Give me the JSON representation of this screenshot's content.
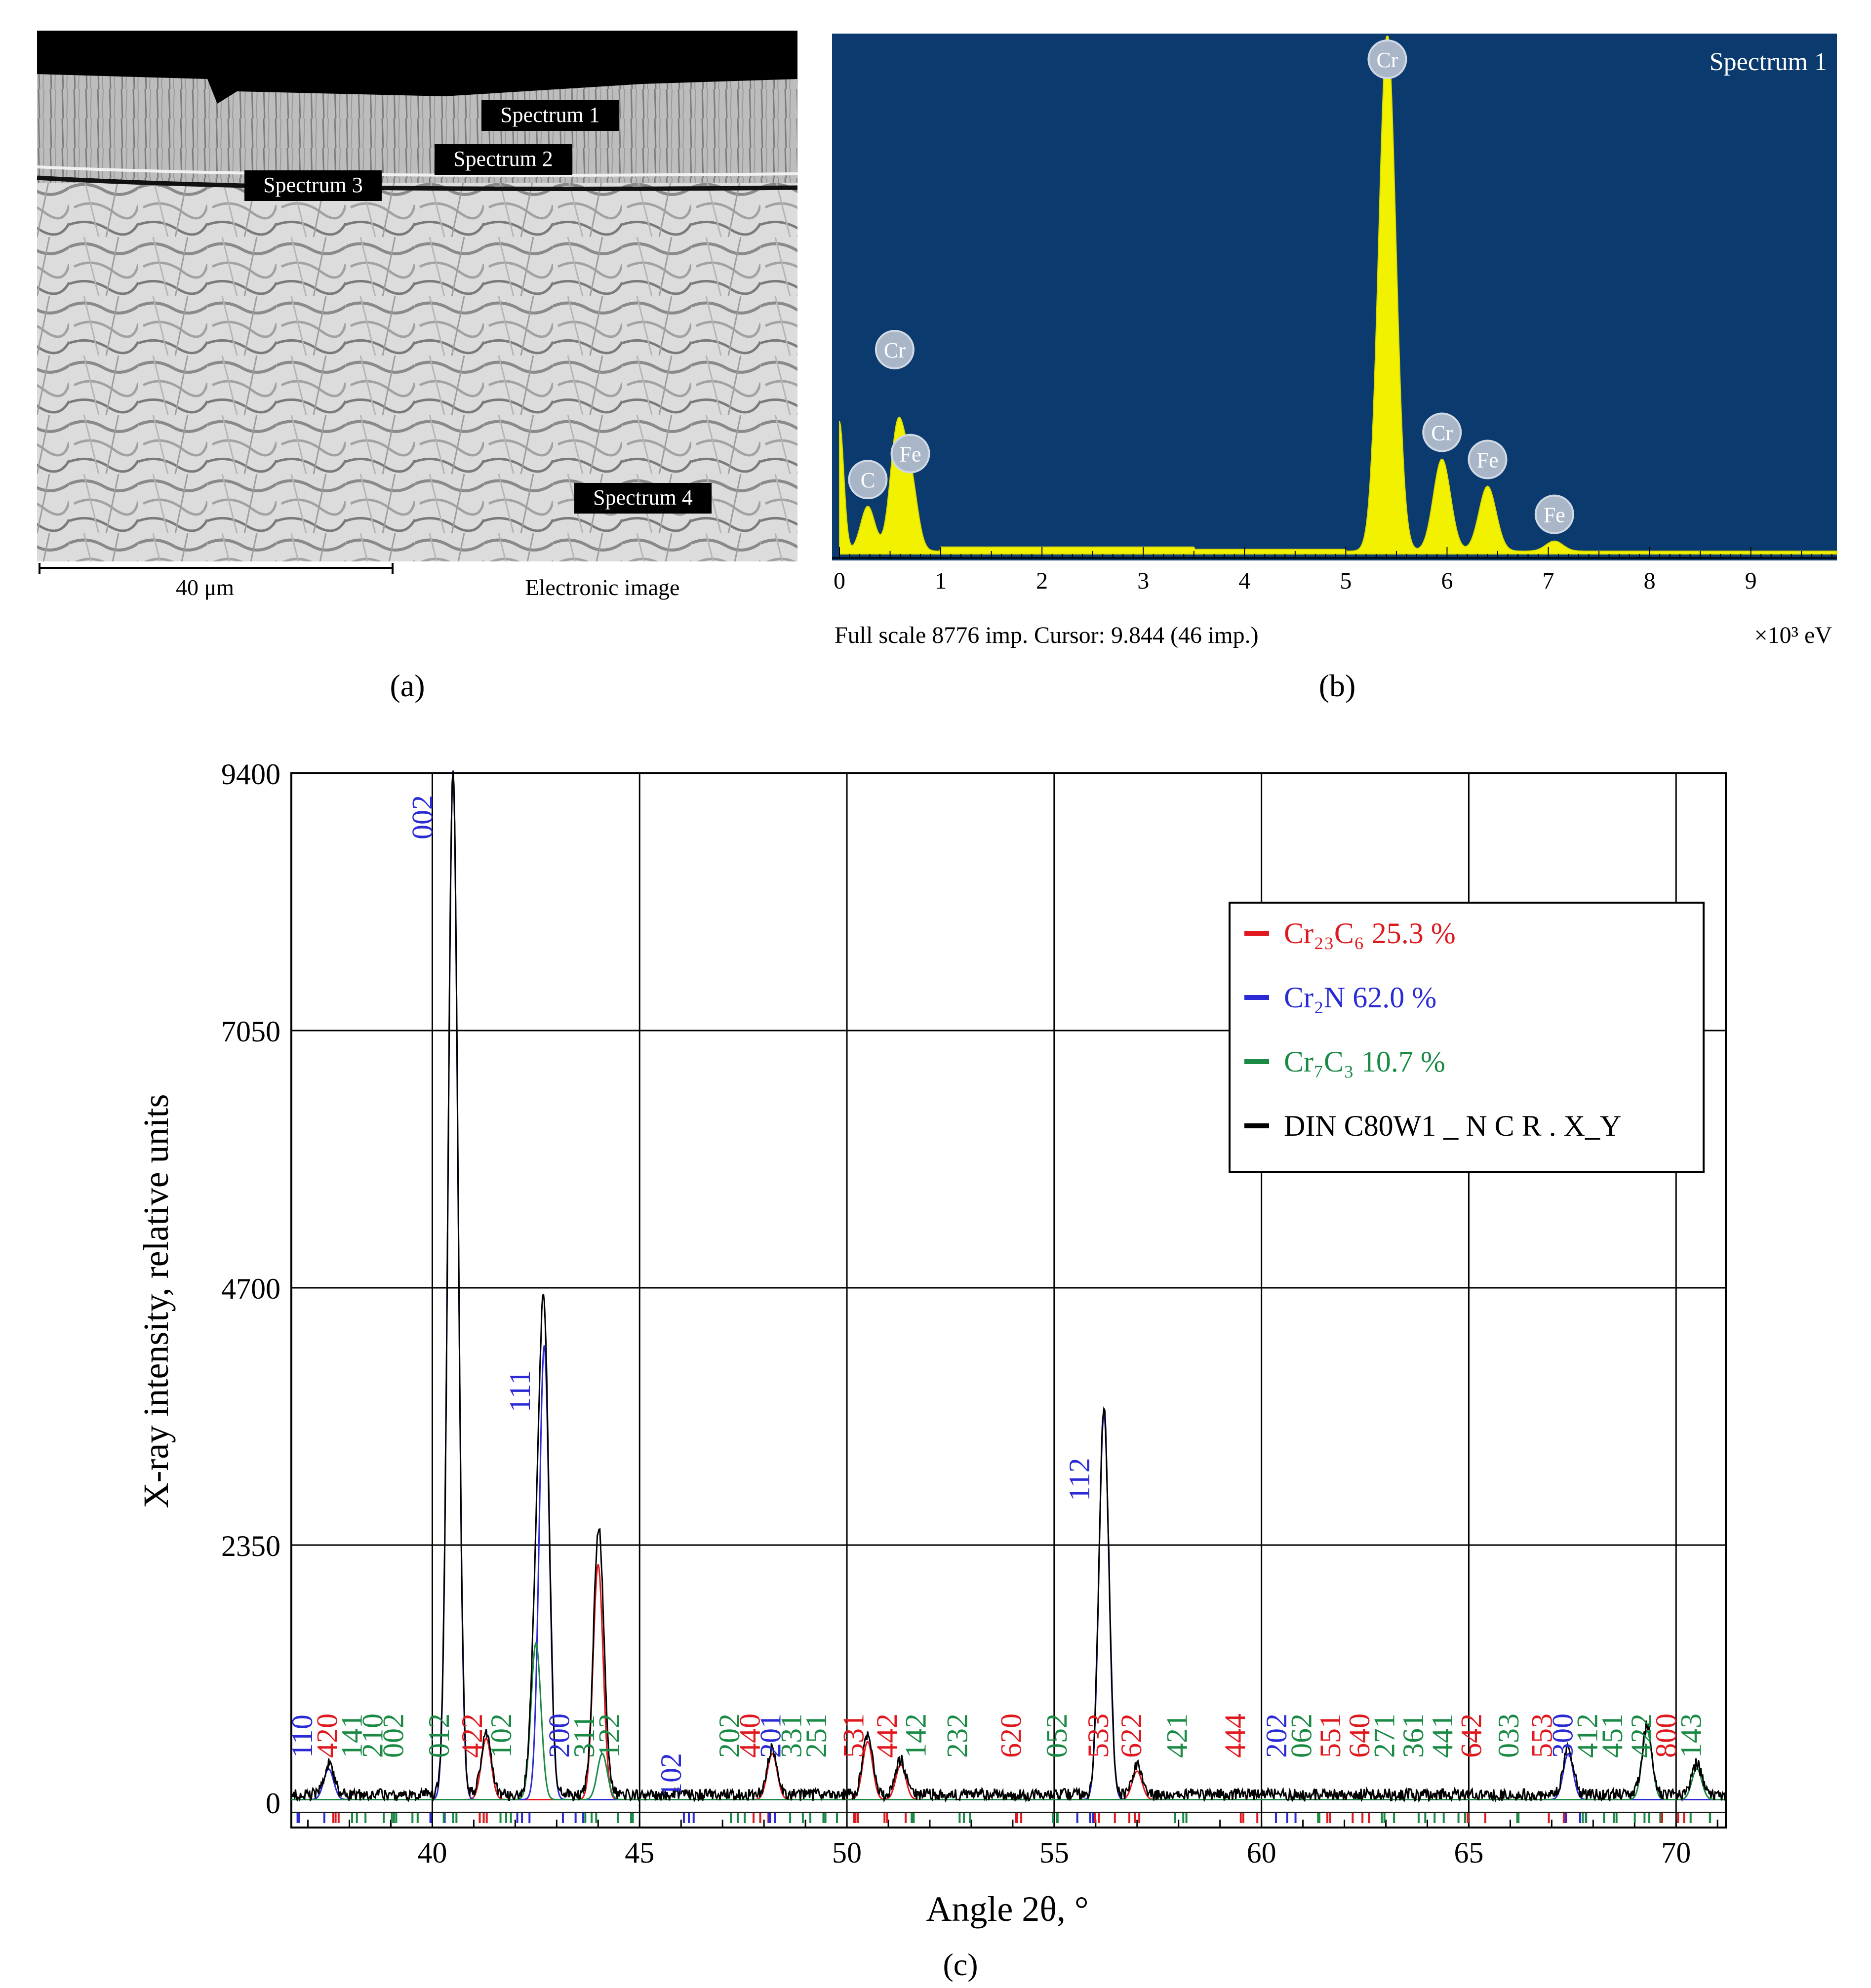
{
  "panel_a": {
    "label": "(a)",
    "labels": [
      "Spectrum 1",
      "Spectrum 2",
      "Spectrum 3",
      "Spectrum 4"
    ],
    "scale_bar": "40 μm",
    "caption": "Electronic image"
  },
  "panel_b": {
    "label": "(b)",
    "title": "Spectrum 1",
    "footer_left": "Full scale 8776 imp. Cursor: 9.844 (46 imp.)",
    "footer_right": "×10³ eV",
    "colors": {
      "background": "#0b3a6e",
      "spectrum": "#f2f200"
    },
    "chart_data": {
      "type": "area",
      "xlabel": "×10³ eV",
      "xlim": [
        0,
        9.85
      ],
      "ylim": [
        0,
        8776
      ],
      "x_ticks": [
        0,
        1,
        2,
        3,
        4,
        5,
        6,
        7,
        8,
        9
      ],
      "peaks": [
        {
          "element": "C",
          "x": 0.28,
          "y": 760
        },
        {
          "element": "Cr",
          "x": 0.57,
          "y": 2000
        },
        {
          "element": "Fe",
          "x": 0.7,
          "y": 1200
        },
        {
          "element": "Cr",
          "x": 5.41,
          "y": 8776
        },
        {
          "element": "Cr",
          "x": 5.95,
          "y": 1560
        },
        {
          "element": "Fe",
          "x": 6.4,
          "y": 1100
        },
        {
          "element": "Fe",
          "x": 7.06,
          "y": 170
        }
      ]
    }
  },
  "panel_c": {
    "label": "(c)",
    "colors": {
      "Cr23C6": "#e0191e",
      "Cr2N": "#2b2bd6",
      "Cr7C3": "#1a8a45",
      "measured": "#000000"
    },
    "chart_data": {
      "type": "line",
      "xlabel": "Angle 2θ, °",
      "ylabel": "X-ray intensity, relative units",
      "xlim": [
        36.6,
        71.2
      ],
      "ylim": [
        0,
        9400
      ],
      "x_ticks": [
        40,
        45,
        50,
        55,
        60,
        65,
        70
      ],
      "y_ticks": [
        0,
        2350,
        4700,
        7050,
        9400
      ],
      "grid": true,
      "legend_position": "upper-right",
      "legend": [
        {
          "series": "Cr23C6",
          "text": "Cr₂₃C₆ 25.3 %"
        },
        {
          "series": "Cr2N",
          "text": "Cr₂N 62.0 %"
        },
        {
          "series": "Cr7C3",
          "text": "Cr₇C₃ 10.7 %"
        },
        {
          "series": "measured",
          "text": "DIN C80W1 _ N C R . X_Y"
        }
      ],
      "peaks": [
        {
          "series": "Cr2N",
          "x": 37.5,
          "y": 280
        },
        {
          "series": "Cr2N",
          "x": 40.5,
          "y": 9400
        },
        {
          "series": "Cr23C6",
          "x": 41.3,
          "y": 560
        },
        {
          "series": "Cr7C3",
          "x": 42.5,
          "y": 1430
        },
        {
          "series": "Cr2N",
          "x": 42.7,
          "y": 4150
        },
        {
          "series": "Cr23C6",
          "x": 44.0,
          "y": 2150
        },
        {
          "series": "Cr7C3",
          "x": 44.1,
          "y": 420
        },
        {
          "series": "Cr23C6",
          "x": 48.2,
          "y": 420
        },
        {
          "series": "Cr23C6",
          "x": 50.5,
          "y": 530
        },
        {
          "series": "Cr23C6",
          "x": 51.3,
          "y": 320
        },
        {
          "series": "Cr2N",
          "x": 56.2,
          "y": 3530
        },
        {
          "series": "Cr23C6",
          "x": 57.0,
          "y": 260
        },
        {
          "series": "Cr2N",
          "x": 67.4,
          "y": 420
        },
        {
          "series": "Cr7C3",
          "x": 69.3,
          "y": 630
        },
        {
          "series": "Cr7C3",
          "x": 70.5,
          "y": 280
        }
      ],
      "hkl_labels": [
        {
          "text": "110",
          "x": 37.1,
          "series": "Cr2N"
        },
        {
          "text": "420",
          "x": 37.7,
          "series": "Cr23C6"
        },
        {
          "text": "141",
          "x": 38.3,
          "series": "Cr7C3"
        },
        {
          "text": "210",
          "x": 38.8,
          "series": "Cr7C3"
        },
        {
          "text": "002",
          "x": 39.3,
          "series": "Cr7C3"
        },
        {
          "text": "002",
          "x": 40.0,
          "series": "Cr2N"
        },
        {
          "text": "012",
          "x": 40.4,
          "series": "Cr7C3"
        },
        {
          "text": "422",
          "x": 41.2,
          "series": "Cr23C6"
        },
        {
          "text": "102",
          "x": 41.9,
          "series": "Cr7C3"
        },
        {
          "text": "111",
          "x": 42.4,
          "series": "Cr2N"
        },
        {
          "text": "200",
          "x": 43.3,
          "series": "Cr2N"
        },
        {
          "text": "311",
          "x": 43.9,
          "series": "Cr7C3"
        },
        {
          "text": "122",
          "x": 44.5,
          "series": "Cr7C3"
        },
        {
          "text": "102",
          "x": 46.0,
          "series": "Cr2N"
        },
        {
          "text": "202",
          "x": 47.4,
          "series": "Cr7C3"
        },
        {
          "text": "440",
          "x": 47.9,
          "series": "Cr23C6"
        },
        {
          "text": "201",
          "x": 48.4,
          "series": "Cr2N"
        },
        {
          "text": "331",
          "x": 48.9,
          "series": "Cr7C3"
        },
        {
          "text": "251",
          "x": 49.5,
          "series": "Cr7C3"
        },
        {
          "text": "531",
          "x": 50.4,
          "series": "Cr23C6"
        },
        {
          "text": "442",
          "x": 51.2,
          "series": "Cr23C6"
        },
        {
          "text": "142",
          "x": 51.9,
          "series": "Cr7C3"
        },
        {
          "text": "232",
          "x": 52.9,
          "series": "Cr7C3"
        },
        {
          "text": "620",
          "x": 54.2,
          "series": "Cr23C6"
        },
        {
          "text": "052",
          "x": 55.3,
          "series": "Cr7C3"
        },
        {
          "text": "112",
          "x": 55.8,
          "series": "Cr2N"
        },
        {
          "text": "533",
          "x": 56.3,
          "series": "Cr23C6"
        },
        {
          "text": "622",
          "x": 57.1,
          "series": "Cr23C6"
        },
        {
          "text": "421",
          "x": 58.2,
          "series": "Cr7C3"
        },
        {
          "text": "444",
          "x": 59.6,
          "series": "Cr23C6"
        },
        {
          "text": "202",
          "x": 60.6,
          "series": "Cr2N"
        },
        {
          "text": "062",
          "x": 61.2,
          "series": "Cr7C3"
        },
        {
          "text": "551",
          "x": 61.9,
          "series": "Cr23C6"
        },
        {
          "text": "640",
          "x": 62.6,
          "series": "Cr23C6"
        },
        {
          "text": "271",
          "x": 63.2,
          "series": "Cr7C3"
        },
        {
          "text": "361",
          "x": 63.9,
          "series": "Cr7C3"
        },
        {
          "text": "441",
          "x": 64.6,
          "series": "Cr7C3"
        },
        {
          "text": "642",
          "x": 65.3,
          "series": "Cr23C6"
        },
        {
          "text": "033",
          "x": 66.2,
          "series": "Cr7C3"
        },
        {
          "text": "553",
          "x": 67.0,
          "series": "Cr23C6"
        },
        {
          "text": "300",
          "x": 67.5,
          "series": "Cr2N"
        },
        {
          "text": "412",
          "x": 68.1,
          "series": "Cr7C3"
        },
        {
          "text": "451",
          "x": 68.7,
          "series": "Cr7C3"
        },
        {
          "text": "422",
          "x": 69.4,
          "series": "Cr7C3"
        },
        {
          "text": "800",
          "x": 70.0,
          "series": "Cr23C6"
        },
        {
          "text": "143",
          "x": 70.6,
          "series": "Cr7C3"
        }
      ]
    }
  }
}
